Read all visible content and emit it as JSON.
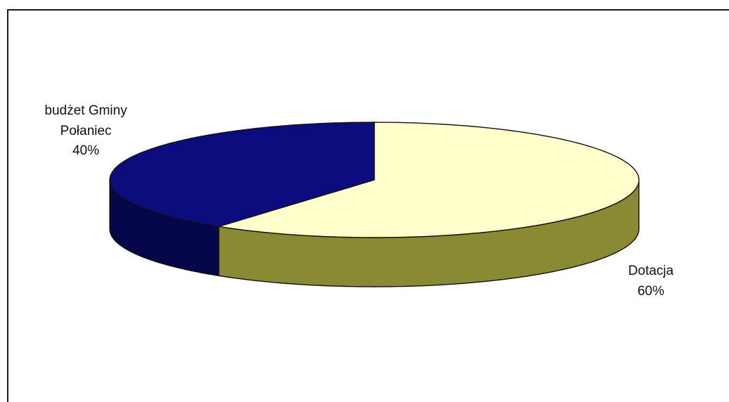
{
  "chart_data": {
    "type": "pie",
    "title": "",
    "style": "3d",
    "slices": [
      {
        "label_lines": [
          "budżet Gminy",
          "Połaniec"
        ],
        "percent_text": "40%",
        "value": 40,
        "top_color": "#0c0c7e",
        "side_color": "#06064a"
      },
      {
        "label_lines": [
          "Dotacja"
        ],
        "percent_text": "60%",
        "value": 60,
        "top_color": "#ffffcc",
        "side_color": "#8a8a34"
      }
    ]
  },
  "colors": {
    "frame": "#1a1a1a",
    "background": "#ffffff",
    "outline": "#111111"
  }
}
